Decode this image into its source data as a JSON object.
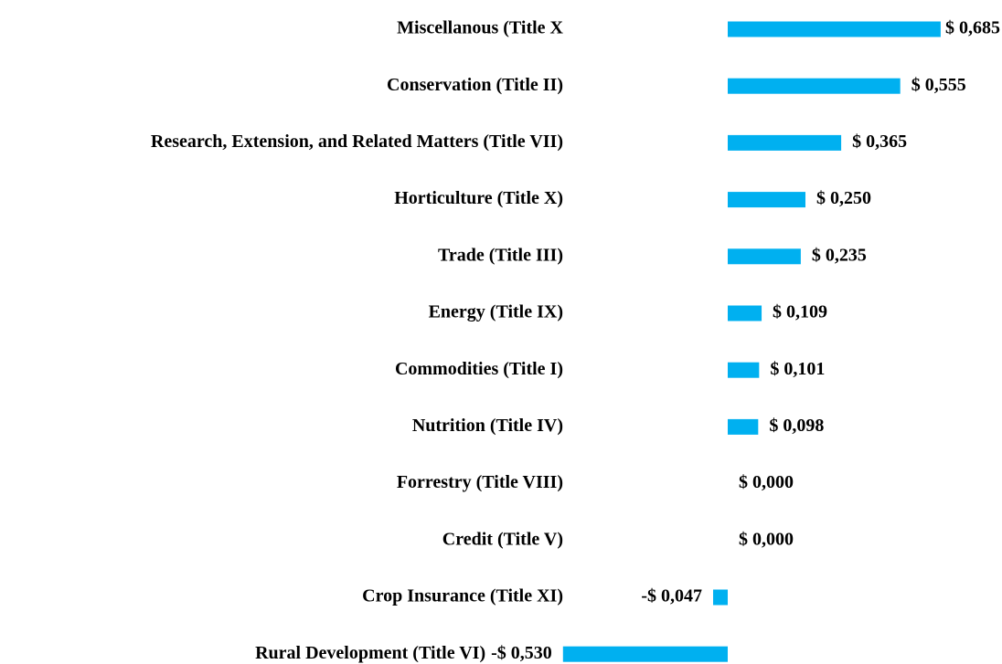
{
  "chart_data": {
    "type": "bar",
    "orientation": "horizontal",
    "color": "#00b0f0",
    "categories": [
      "Miscellanous (Title X",
      "Conservation (Title II)",
      "Research, Extension, and Related Matters (Title VII)",
      "Horticulture (Title X)",
      "Trade (Title III)",
      "Energy (Title IX)",
      "Commodities (Title I)",
      "Nutrition (Title IV)",
      "Forrestry (Title VIII)",
      "Credit (Title V)",
      "Crop Insurance (Title XI)",
      "Rural Development (Title VI)"
    ],
    "values": [
      0.685,
      0.555,
      0.365,
      0.25,
      0.235,
      0.109,
      0.101,
      0.098,
      0,
      0,
      -0.047,
      -0.53
    ],
    "value_labels": [
      "$ 0,685",
      "$ 0,555",
      "$ 0,365",
      "$ 0,250",
      "$ 0,235",
      "$ 0,109",
      "$ 0,101",
      "$ 0,098",
      "$ 0,000",
      "$ 0,000",
      "-$ 0,047",
      "-$ 0,530"
    ]
  }
}
